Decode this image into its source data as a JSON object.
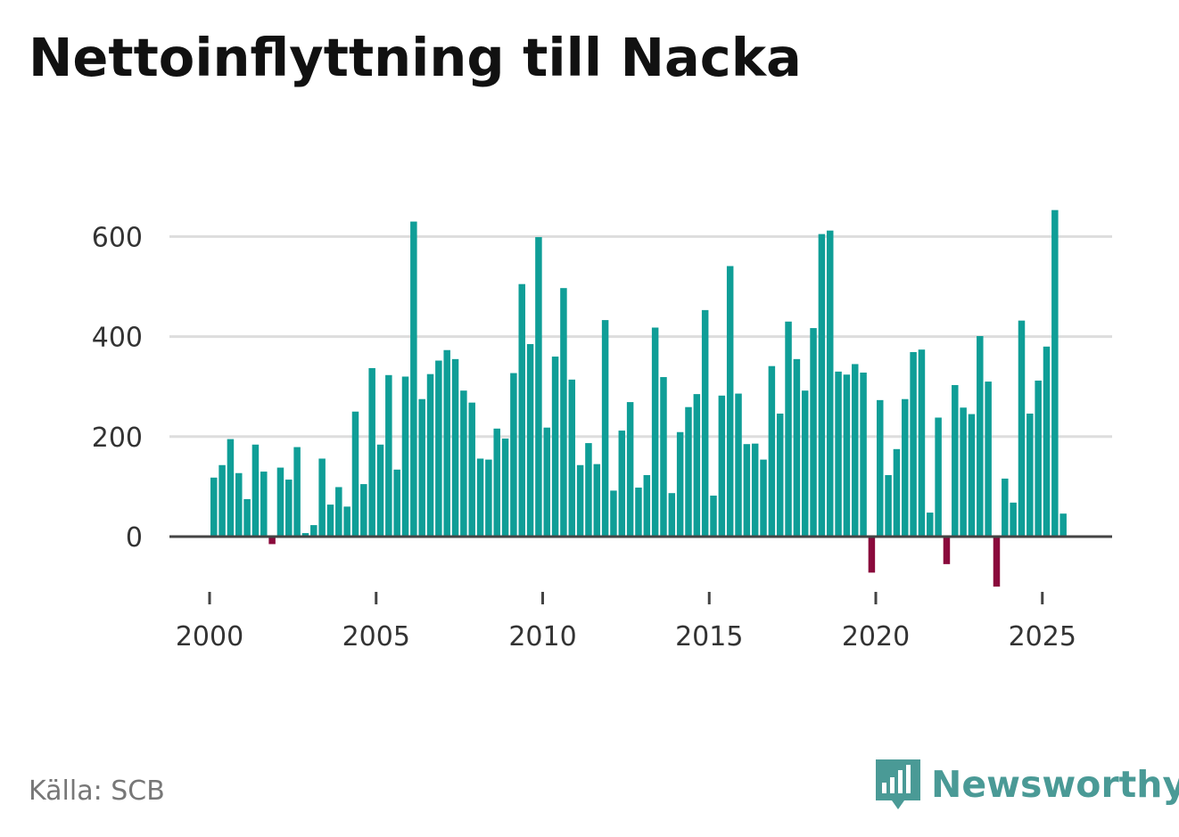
{
  "header": {
    "title": "Nettoinflyttning till Nacka"
  },
  "footer": {
    "source": "Källa: SCB",
    "brand": "Newsworthy"
  },
  "colors": {
    "positive": "#0f9e97",
    "negative": "#8a0a3c",
    "grid": "#dddddd",
    "axis": "#444444",
    "brand": "#4a9a96"
  },
  "chart_data": {
    "type": "bar",
    "title": "Nettoinflyttning till Nacka",
    "xlabel": "",
    "ylabel": "",
    "ylim": [
      -100,
      660
    ],
    "y_ticks": [
      0,
      200,
      400,
      600
    ],
    "y_tick_labels": [
      "0",
      "200",
      "400",
      "600"
    ],
    "x_ticks": [
      2000,
      2005,
      2010,
      2015,
      2020,
      2025
    ],
    "x_tick_labels": [
      "2000",
      "2005",
      "2010",
      "2015",
      "2020",
      "2025"
    ],
    "x_start": 2000.0,
    "x_step": 0.25,
    "grid": true,
    "values": [
      118,
      143,
      195,
      127,
      75,
      184,
      130,
      -15,
      138,
      114,
      179,
      7,
      23,
      156,
      64,
      99,
      60,
      250,
      105,
      337,
      184,
      323,
      134,
      320,
      630,
      275,
      325,
      352,
      373,
      355,
      292,
      268,
      156,
      154,
      216,
      196,
      327,
      505,
      385,
      599,
      218,
      360,
      497,
      314,
      143,
      187,
      145,
      433,
      92,
      212,
      269,
      98,
      123,
      418,
      319,
      87,
      209,
      259,
      285,
      453,
      82,
      282,
      541,
      286,
      185,
      186,
      154,
      341,
      246,
      430,
      355,
      292,
      417,
      605,
      612,
      330,
      324,
      345,
      328,
      -72,
      273,
      123,
      175,
      275,
      369,
      374,
      48,
      238,
      -55,
      303,
      258,
      245,
      401,
      310,
      -100,
      116,
      68,
      432,
      246,
      312,
      380,
      653,
      46
    ]
  }
}
